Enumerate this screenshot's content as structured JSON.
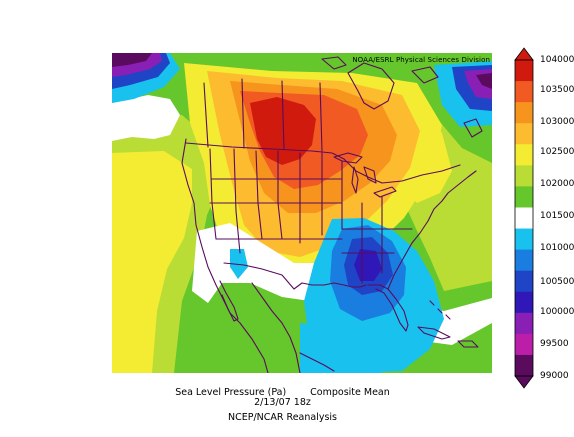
{
  "map": {
    "credit": "NOAA/ESRL Physical Sciences Division",
    "variable": "Sea Level Pressure (Pa)",
    "statistic": "Composite Mean",
    "date": "2/13/07 18z",
    "source": "NCEP/NCAR Reanalysis",
    "high_pressure_center": "northern Plains / southern Canada",
    "low_pressure_center": "southeastern United States"
  },
  "colorbar": {
    "labels": [
      "104000",
      "103500",
      "103000",
      "102500",
      "102000",
      "101500",
      "101000",
      "100500",
      "100000",
      "99500",
      "99000"
    ],
    "colors": [
      "#d11a0e",
      "#f15a22",
      "#f7941d",
      "#fdbb2f",
      "#f4ec32",
      "#b9dd35",
      "#65c72b",
      "#ffffff",
      "#19c1ee",
      "#1a7ee0",
      "#1f44c6",
      "#3018b8",
      "#8a1fb6",
      "#bb1ea8",
      "#5a0b5d"
    ]
  }
}
